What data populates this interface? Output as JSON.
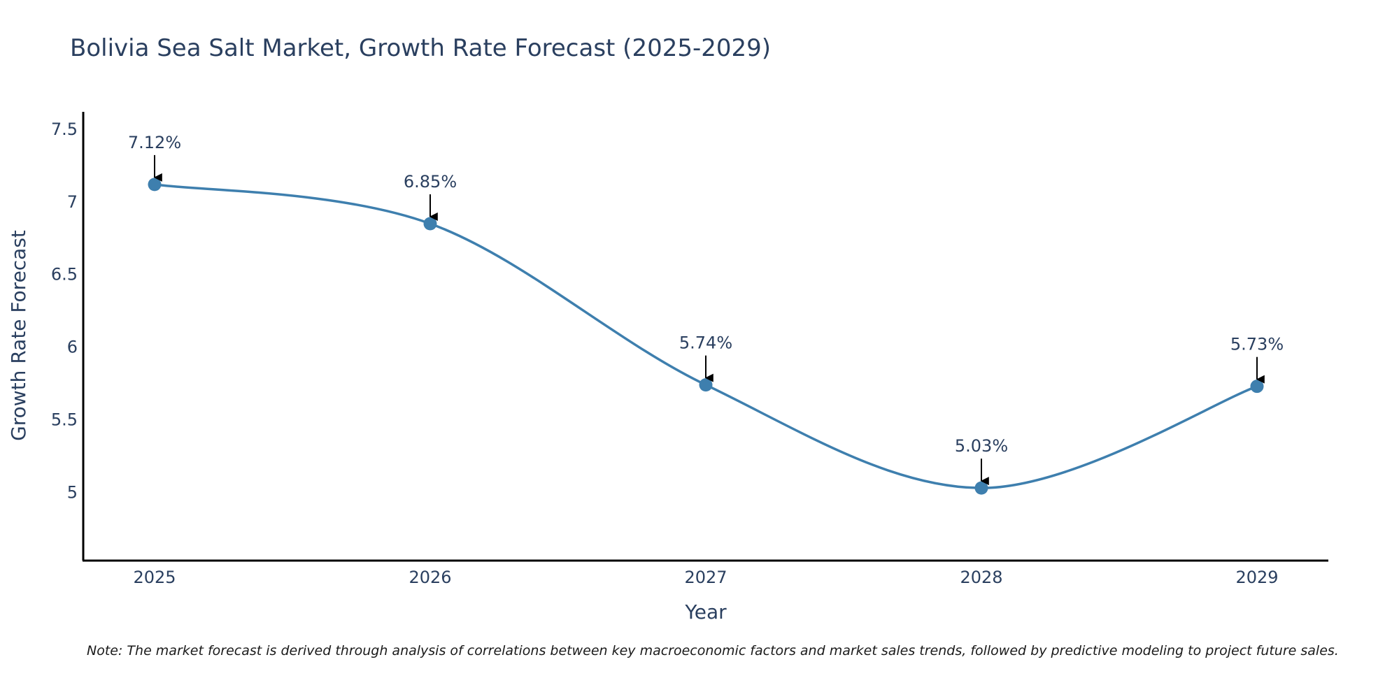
{
  "chart_data": {
    "type": "line",
    "title": "Bolivia Sea Salt Market, Growth Rate Forecast (2025-2029)",
    "xlabel": "Year",
    "ylabel": "Growth Rate Forecast",
    "categories": [
      "2025",
      "2026",
      "2027",
      "2028",
      "2029"
    ],
    "values": [
      7.12,
      6.85,
      5.74,
      5.03,
      5.73
    ],
    "data_labels": [
      "7.12%",
      "6.85%",
      "5.74%",
      "5.03%",
      "5.73%"
    ],
    "ylim": [
      4.53,
      7.62
    ],
    "yticks": [
      5,
      5.5,
      6,
      6.5,
      7,
      7.5
    ],
    "ytick_labels": [
      "5",
      "5.5",
      "6",
      "6.5",
      "7",
      "7.5"
    ],
    "line_shape": "spline",
    "grid": false,
    "colors": {
      "line": "#3e7fae",
      "marker": "#3e7fae",
      "axis": "#000000",
      "text": "#2a3f5f",
      "arrow": "#000000"
    }
  },
  "note": "Note: The market forecast is derived through analysis of correlations between key macroeconomic factors and market sales trends, followed by predictive modeling to project future sales."
}
